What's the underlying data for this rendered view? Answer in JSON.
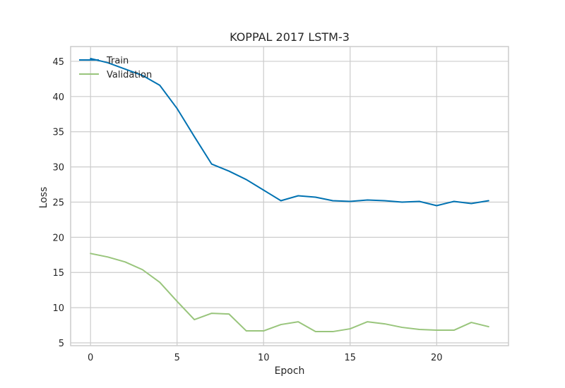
{
  "chart_data": {
    "type": "line",
    "title": "KOPPAL 2017 LSTM-3",
    "xlabel": "Epoch",
    "ylabel": "Loss",
    "xlim": [
      -1.15,
      24.15
    ],
    "ylim": [
      4.6,
      47.1
    ],
    "xticks": [
      0,
      5,
      10,
      15,
      20
    ],
    "yticks": [
      5,
      10,
      15,
      20,
      25,
      30,
      35,
      40,
      45
    ],
    "grid": true,
    "legend_position": "upper-left",
    "x": [
      0,
      1,
      2,
      3,
      4,
      5,
      6,
      7,
      8,
      9,
      10,
      11,
      12,
      13,
      14,
      15,
      16,
      17,
      18,
      19,
      20,
      21,
      22,
      23
    ],
    "series": [
      {
        "name": "Train",
        "color": "#0072b2",
        "values": [
          45.4,
          44.8,
          43.9,
          43.0,
          41.6,
          38.3,
          34.3,
          30.4,
          29.4,
          28.2,
          26.7,
          25.2,
          25.9,
          25.7,
          25.2,
          25.1,
          25.3,
          25.2,
          25.0,
          25.1,
          24.5,
          25.1,
          24.8,
          25.2
        ]
      },
      {
        "name": "Validation",
        "color": "#99c57c",
        "values": [
          17.7,
          17.2,
          16.5,
          15.4,
          13.6,
          10.9,
          8.3,
          9.2,
          9.1,
          6.7,
          6.7,
          7.6,
          8.0,
          6.6,
          6.6,
          7.0,
          8.0,
          7.7,
          7.2,
          6.9,
          6.8,
          6.8,
          7.9,
          7.3
        ]
      }
    ]
  }
}
